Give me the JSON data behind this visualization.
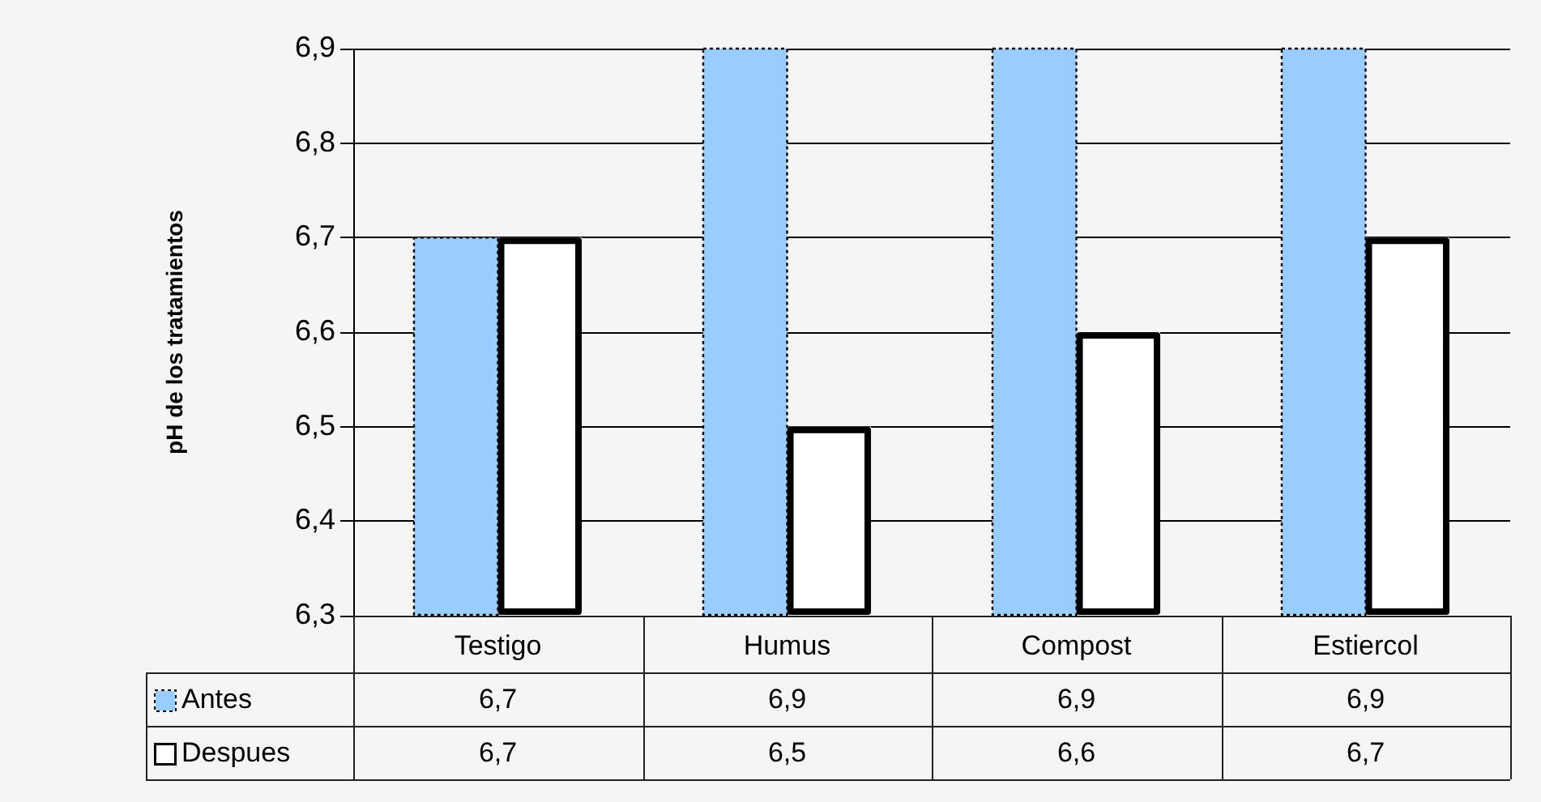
{
  "chart_data": {
    "type": "bar",
    "ylabel": "pH de los tratamientos",
    "categories": [
      "Testigo",
      "Humus",
      "Compost",
      "Estiercol"
    ],
    "series": [
      {
        "name": "Antes",
        "color": "#99ccff",
        "values": [
          6.7,
          6.9,
          6.9,
          6.9
        ],
        "value_labels": [
          "6,7",
          "6,9",
          "6,9",
          "6,9"
        ]
      },
      {
        "name": "Despues",
        "color": "#ffffff",
        "values": [
          6.7,
          6.5,
          6.6,
          6.7
        ],
        "value_labels": [
          "6,7",
          "6,5",
          "6,6",
          "6,7"
        ]
      }
    ],
    "ylim": [
      6.3,
      6.9
    ],
    "yticks": [
      {
        "value": 6.3,
        "label": "6,3"
      },
      {
        "value": 6.4,
        "label": "6,4"
      },
      {
        "value": 6.5,
        "label": "6,5"
      },
      {
        "value": 6.6,
        "label": "6,6"
      },
      {
        "value": 6.7,
        "label": "6,7"
      },
      {
        "value": 6.8,
        "label": "6,8"
      },
      {
        "value": 6.9,
        "label": "6,9"
      }
    ],
    "grid": "y",
    "legend": "bottom left"
  }
}
